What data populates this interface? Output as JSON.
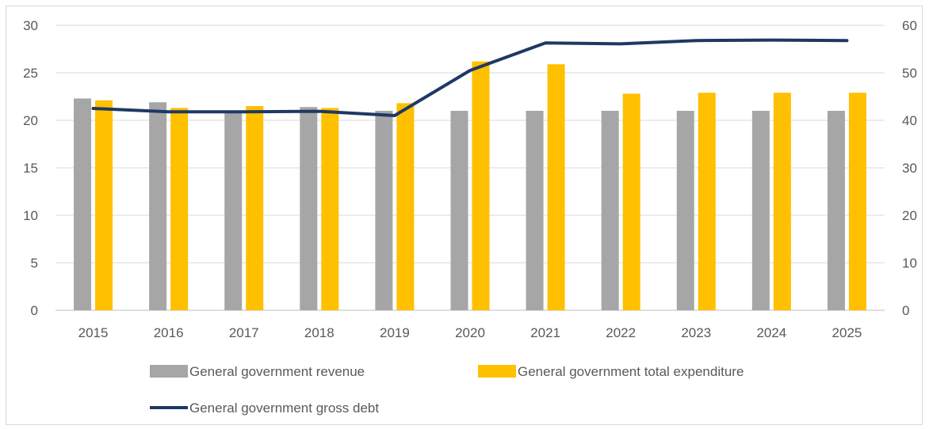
{
  "chart_data": {
    "type": "bar",
    "categories": [
      "2015",
      "2016",
      "2017",
      "2018",
      "2019",
      "2020",
      "2021",
      "2022",
      "2023",
      "2024",
      "2025"
    ],
    "series": [
      {
        "name": "General government revenue",
        "type": "bar",
        "axis": "left",
        "color": "#a6a6a6",
        "values": [
          22.3,
          21.9,
          21.0,
          21.4,
          21.0,
          21.0,
          21.0,
          21.0,
          21.0,
          21.0,
          21.0
        ]
      },
      {
        "name": "General government total expenditure",
        "type": "bar",
        "axis": "left",
        "color": "#ffc000",
        "values": [
          22.1,
          21.3,
          21.5,
          21.3,
          21.8,
          26.2,
          25.9,
          22.8,
          22.9,
          22.9,
          22.9
        ]
      },
      {
        "name": "General government gross debt",
        "type": "line",
        "axis": "right",
        "color": "#1f3864",
        "values": [
          42.5,
          41.8,
          41.8,
          41.9,
          41.0,
          50.5,
          56.3,
          56.1,
          56.8,
          56.9,
          56.8
        ]
      }
    ],
    "ylim_left": [
      0,
      30
    ],
    "yticks_left": [
      "0",
      "5",
      "10",
      "15",
      "20",
      "25",
      "30"
    ],
    "ylim_right": [
      0,
      60
    ],
    "yticks_right": [
      "0",
      "10",
      "20",
      "30",
      "40",
      "50",
      "60"
    ],
    "grid": true,
    "legend": "bottom"
  }
}
